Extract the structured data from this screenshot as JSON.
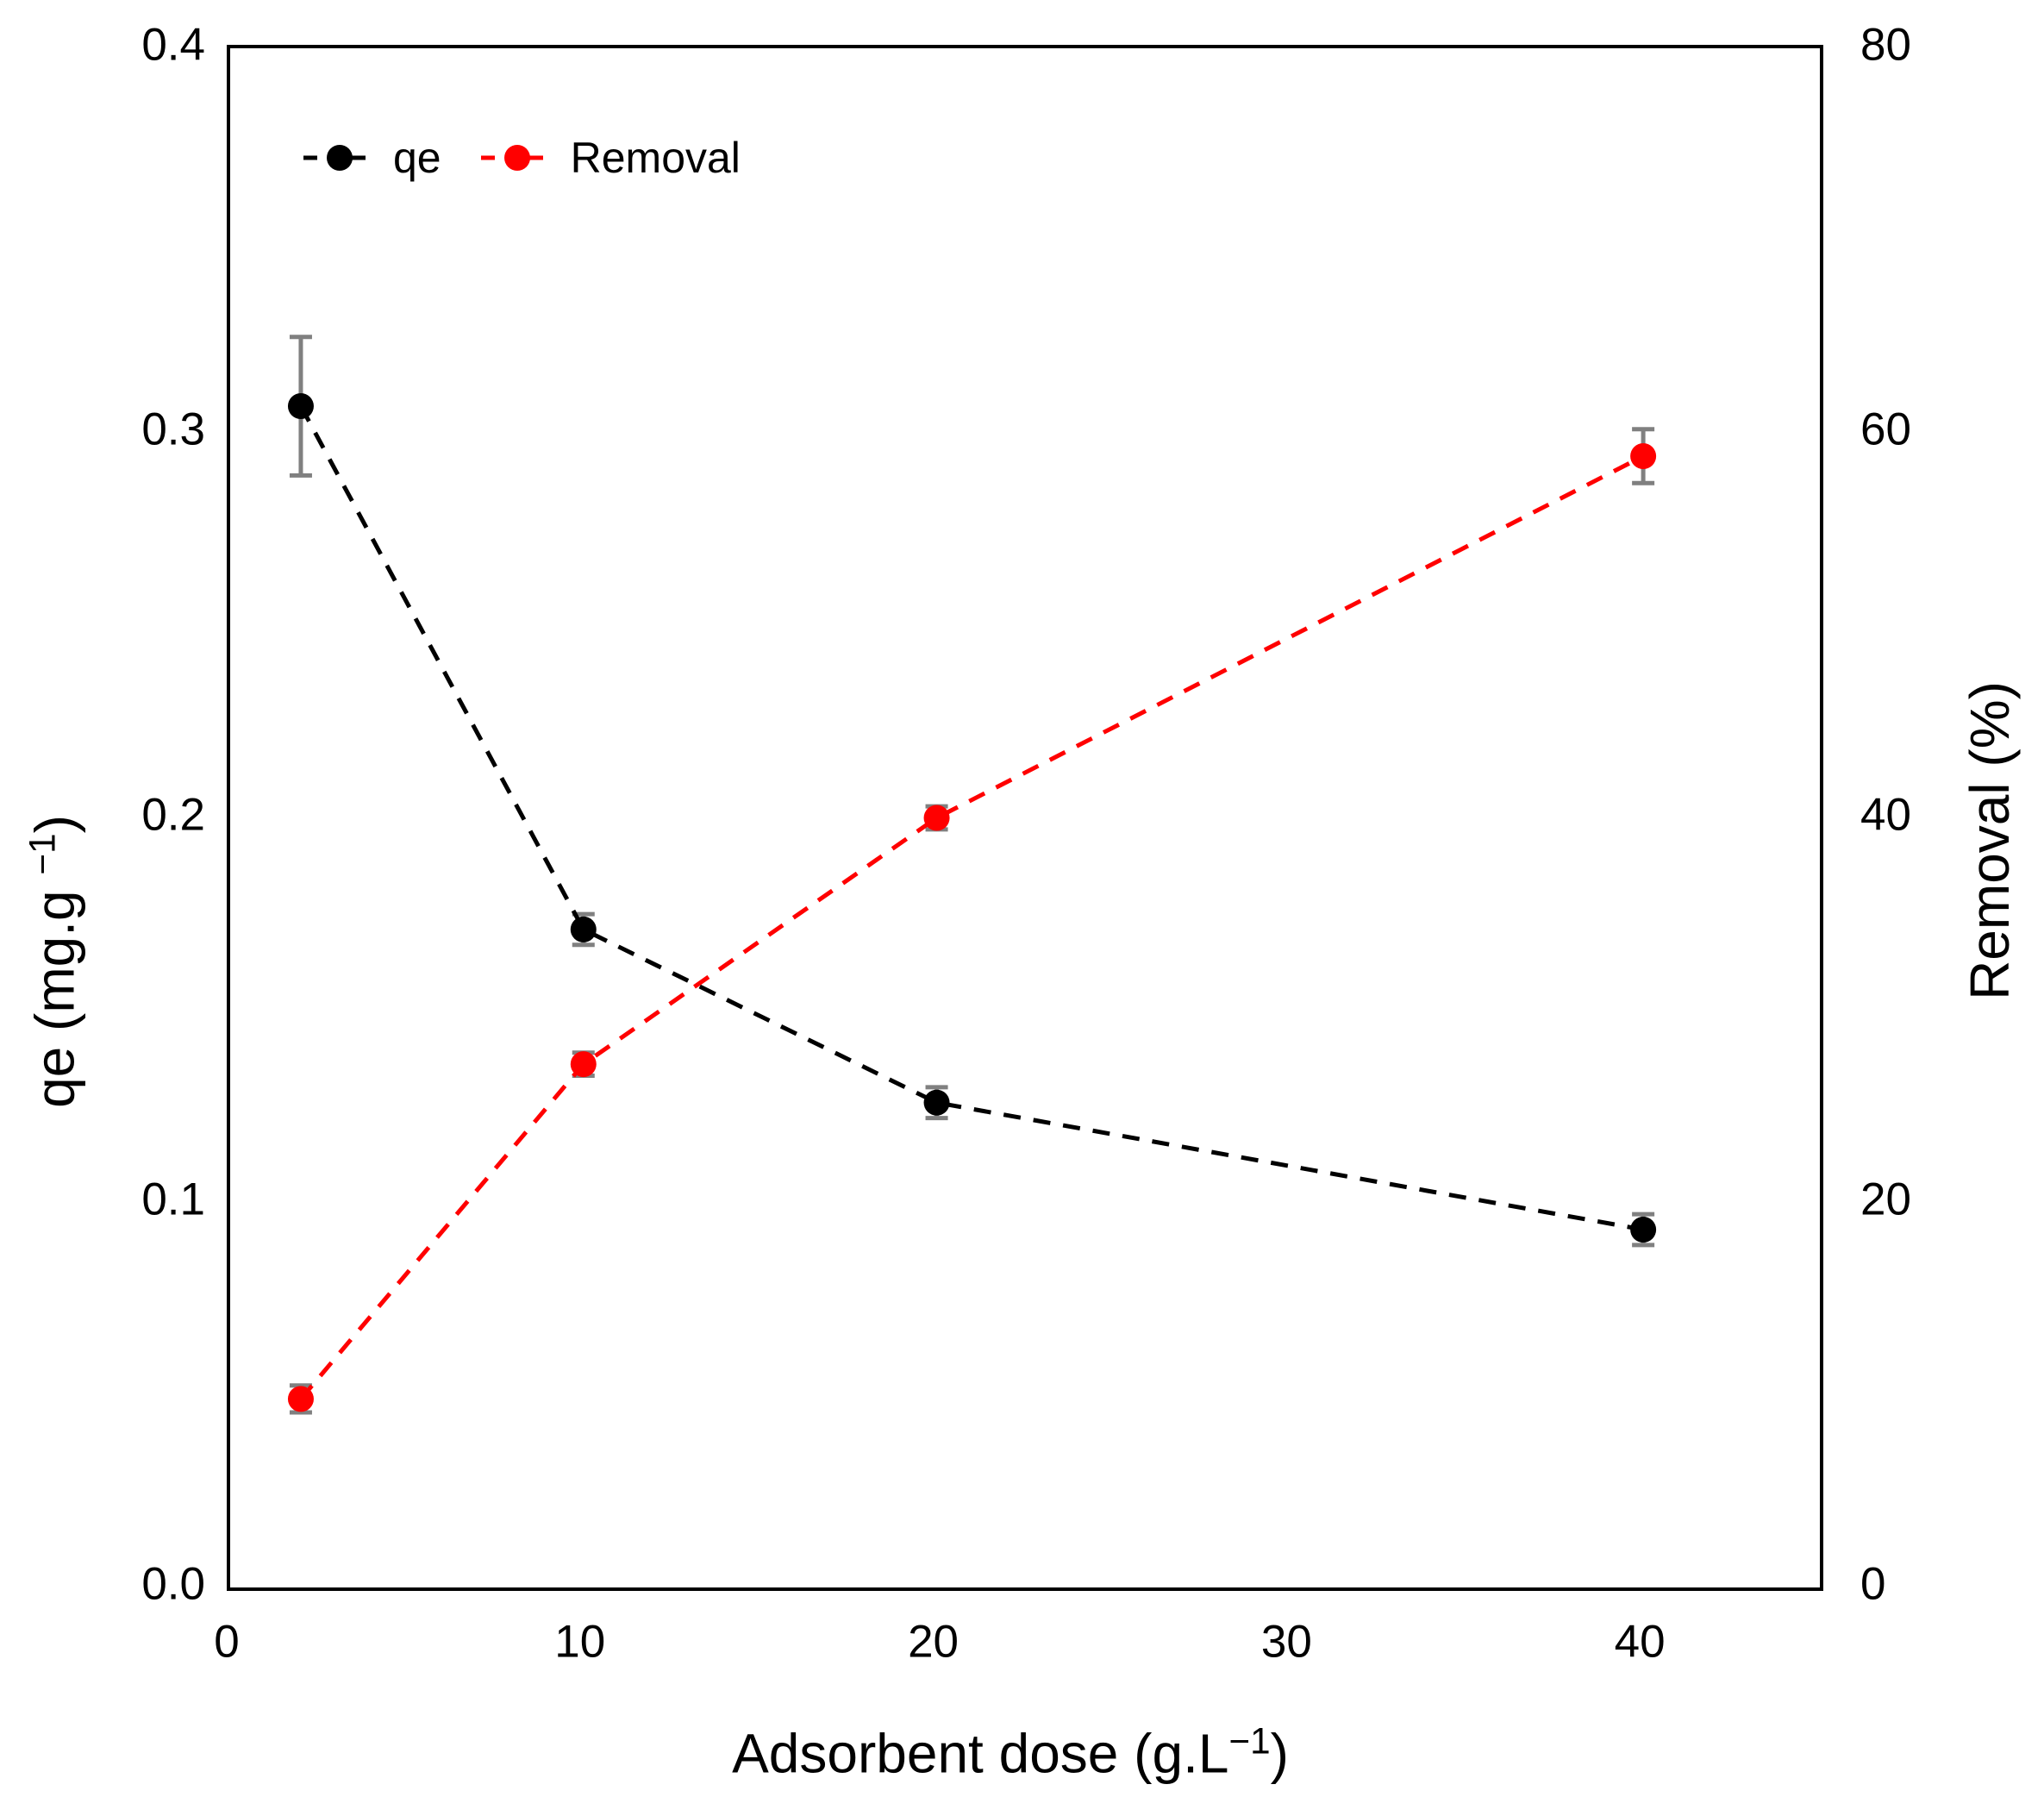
{
  "figure": {
    "background": "#FFFFFF",
    "text_color": "#000000",
    "error_bar_color": "#808080"
  },
  "legend": {
    "items": [
      {
        "label": "qe",
        "color": "#000000"
      },
      {
        "label": "Removal",
        "color": "#FF0000"
      }
    ]
  },
  "axes": {
    "x": {
      "title_prefix": "Adsorbent dose  (g.L",
      "title_sup": "−1",
      "title_suffix": ")",
      "ticks": [
        "0",
        "10",
        "20",
        "30",
        "40"
      ]
    },
    "y_left": {
      "title_prefix": "qe (mg.g ",
      "title_sup": "−1",
      "title_suffix": ")",
      "ticks": [
        "0.0",
        "0.1",
        "0.2",
        "0.3",
        "0.4"
      ]
    },
    "y_right": {
      "title": "Removal (%)",
      "ticks": [
        "0",
        "20",
        "40",
        "60",
        "80"
      ]
    }
  },
  "chart_data": {
    "type": "line",
    "title": "",
    "x": [
      2,
      10,
      20,
      40
    ],
    "series": [
      {
        "name": "qe",
        "axis": "left",
        "color": "#000000",
        "marker": "circle",
        "line_style": "dashed",
        "values": [
          0.307,
          0.171,
          0.126,
          0.093
        ],
        "errors": [
          0.018,
          0.004,
          0.004,
          0.004
        ]
      },
      {
        "name": "Removal",
        "axis": "right",
        "color": "#FF0000",
        "marker": "circle",
        "line_style": "dashed",
        "values": [
          9.8,
          27.2,
          40.0,
          58.8
        ],
        "errors": [
          0.7,
          0.6,
          0.6,
          1.4
        ]
      }
    ],
    "x_axis": {
      "label": "Adsorbent dose (g.L−1)",
      "ticks": [
        0,
        10,
        20,
        30,
        40
      ],
      "range": [
        0,
        45
      ]
    },
    "y_left": {
      "label": "qe (mg.g −1)",
      "ticks": [
        0,
        0.1,
        0.2,
        0.3,
        0.4
      ],
      "range": [
        0,
        0.4
      ]
    },
    "y_right": {
      "label": "Removal (%)",
      "ticks": [
        0,
        20,
        40,
        60,
        80
      ],
      "range": [
        0,
        80
      ]
    },
    "grid": false,
    "legend_position": "top-left-inside",
    "error_bars": true
  }
}
